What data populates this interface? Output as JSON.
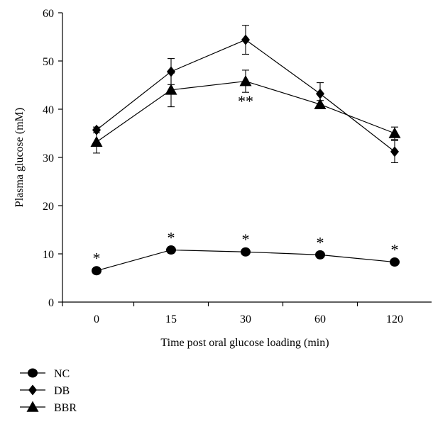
{
  "chart_data": {
    "type": "line",
    "title": "",
    "xlabel": "Time post oral glucose loading (min)",
    "ylabel": "Plasma glucose (mM)",
    "categories": [
      "0",
      "15",
      "30",
      "60",
      "120"
    ],
    "ylim": [
      0,
      60
    ],
    "yticks": [
      0,
      10,
      20,
      30,
      40,
      50,
      60
    ],
    "grid": false,
    "legend_position": "bottom-left",
    "series": [
      {
        "name": "NC",
        "marker": "circle",
        "values": [
          6.5,
          10.8,
          10.4,
          9.8,
          8.3
        ],
        "errors": [
          0.6,
          0.6,
          0.6,
          0.6,
          0.6
        ],
        "annotations": [
          "*",
          "*",
          "*",
          "*",
          "*"
        ]
      },
      {
        "name": "DB",
        "marker": "diamond",
        "values": [
          35.7,
          47.8,
          54.4,
          43.2,
          31.2
        ],
        "errors": [
          0.6,
          2.7,
          3.0,
          2.3,
          2.3
        ],
        "annotations": [
          "",
          "",
          "",
          "",
          ""
        ]
      },
      {
        "name": "BBR",
        "marker": "triangle",
        "values": [
          33.2,
          44.0,
          45.8,
          41.0,
          35.0
        ],
        "errors": [
          2.3,
          3.5,
          2.3,
          0.8,
          1.3
        ],
        "annotations": [
          "",
          "",
          "**",
          "",
          ""
        ]
      }
    ]
  }
}
